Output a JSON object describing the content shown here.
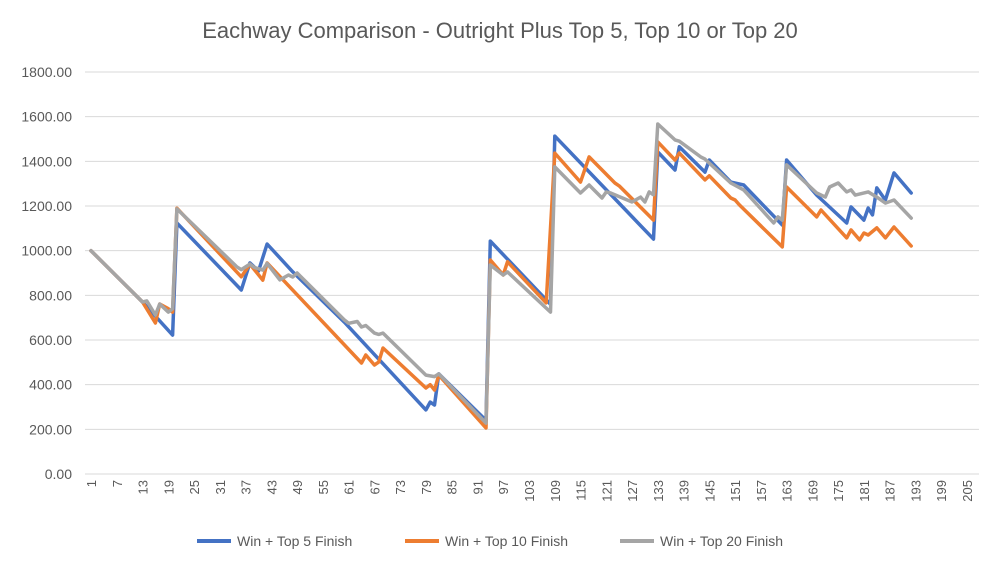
{
  "chart_data": {
    "type": "line",
    "title": "Eachway Comparison - Outright Plus Top 5, Top 10 or Top 20",
    "xlabel": "",
    "ylabel": "",
    "ylim": [
      0,
      1800
    ],
    "y_ticks": [
      "0.00",
      "200.00",
      "400.00",
      "600.00",
      "800.00",
      "1000.00",
      "1200.00",
      "1400.00",
      "1600.00",
      "1800.00"
    ],
    "x_ticks": [
      "1",
      "7",
      "13",
      "19",
      "25",
      "31",
      "37",
      "43",
      "49",
      "55",
      "61",
      "67",
      "73",
      "79",
      "85",
      "91",
      "97",
      "103",
      "109",
      "115",
      "121",
      "127",
      "133",
      "139",
      "145",
      "151",
      "157",
      "163",
      "169",
      "175",
      "181",
      "187",
      "193",
      "199",
      "205"
    ],
    "xlim": [
      1,
      208
    ],
    "grid": "horizontal",
    "legend_position": "bottom",
    "series": [
      {
        "name": "Win + Top 5 Finish",
        "color": "#4472C4",
        "x": [
          1,
          13,
          20,
          21,
          36,
          38,
          40,
          42,
          48,
          60,
          79,
          80,
          81,
          82,
          93,
          94,
          108,
          109,
          132,
          133,
          137,
          138,
          144,
          145,
          150,
          153,
          162,
          163,
          170,
          177,
          178,
          181,
          182,
          183,
          184,
          186,
          188,
          192
        ],
        "y": [
          1000,
          770,
          622,
          1124,
          824,
          945,
          909,
          1030,
          905,
          680,
          287,
          322,
          309,
          448,
          240,
          1043,
          760,
          1513,
          1052,
          1442,
          1361,
          1465,
          1352,
          1406,
          1307,
          1294,
          1115,
          1406,
          1249,
          1124,
          1196,
          1137,
          1191,
          1160,
          1281,
          1227,
          1348,
          1258
        ]
      },
      {
        "name": "Win + Top 10 Finish",
        "color": "#ED7D31",
        "x": [
          1,
          13,
          16,
          17,
          19,
          20,
          21,
          36,
          38,
          41,
          42,
          64,
          65,
          67,
          68,
          69,
          79,
          80,
          81,
          82,
          93,
          94,
          97,
          98,
          107,
          109,
          115,
          117,
          123,
          124,
          132,
          133,
          137,
          138,
          144,
          145,
          150,
          151,
          152,
          162,
          163,
          170,
          171,
          177,
          178,
          180,
          181,
          182,
          184,
          186,
          188,
          192
        ],
        "y": [
          1000,
          770,
          676,
          761,
          740,
          725,
          1190,
          883,
          940,
          868,
          945,
          497,
          533,
          488,
          501,
          564,
          385,
          400,
          376,
          443,
          206,
          958,
          891,
          950,
          766,
          1437,
          1307,
          1420,
          1303,
          1290,
          1137,
          1487,
          1406,
          1437,
          1317,
          1335,
          1236,
          1227,
          1205,
          1017,
          1285,
          1151,
          1182,
          1057,
          1093,
          1048,
          1079,
          1070,
          1102,
          1057,
          1106,
          1021
        ]
      },
      {
        "name": "Win + Top 20 Finish",
        "color": "#A5A5A5",
        "x": [
          1,
          13,
          14,
          16,
          17,
          19,
          20,
          21,
          35,
          36,
          38,
          39,
          41,
          42,
          45,
          47,
          48,
          49,
          60,
          61,
          63,
          64,
          65,
          67,
          68,
          69,
          79,
          81,
          82,
          93,
          94,
          97,
          98,
          108,
          109,
          115,
          117,
          120,
          121,
          122,
          127,
          129,
          130,
          131,
          132,
          133,
          137,
          138,
          143,
          144,
          150,
          153,
          160,
          161,
          162,
          163,
          170,
          172,
          173,
          175,
          177,
          178,
          179,
          182,
          184,
          186,
          188,
          192
        ],
        "y": [
          1000,
          770,
          775,
          712,
          761,
          725,
          740,
          1187,
          927,
          915,
          940,
          925,
          913,
          943,
          869,
          891,
          882,
          900,
          690,
          675,
          683,
          658,
          665,
          631,
          625,
          631,
          443,
          436,
          448,
          228,
          936,
          891,
          905,
          725,
          1375,
          1258,
          1294,
          1236,
          1263,
          1258,
          1218,
          1240,
          1218,
          1263,
          1250,
          1567,
          1496,
          1490,
          1420,
          1410,
          1303,
          1272,
          1124,
          1151,
          1137,
          1384,
          1258,
          1240,
          1285,
          1303,
          1263,
          1272,
          1249,
          1263,
          1240,
          1213,
          1227,
          1146
        ]
      }
    ]
  }
}
